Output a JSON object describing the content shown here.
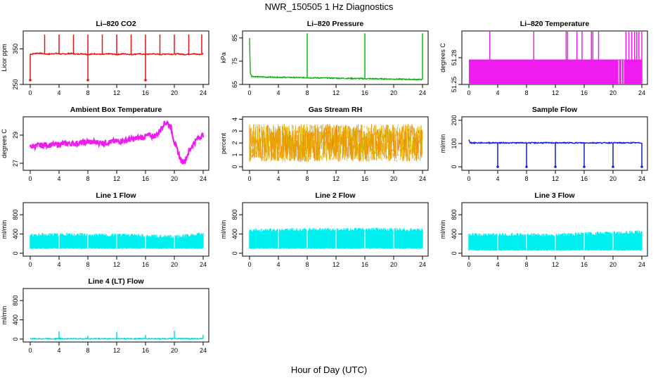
{
  "main_title": "NWR_150505  1 Hz Diagnostics",
  "x_axis_label": "Hour of Day (UTC)",
  "chart_data": [
    {
      "type": "line",
      "title": "Li–820 CO2",
      "ylabel": "Licor ppm",
      "color": "#e8120f",
      "xlim": [
        0,
        24
      ],
      "ylim": [
        250,
        400
      ],
      "yticks": [
        250,
        350
      ],
      "x": [
        0,
        0.5,
        1,
        1.5,
        2,
        2.5,
        3,
        3.5,
        4,
        4.5,
        5,
        5.5,
        6,
        6.5,
        7,
        7.5,
        8,
        8.5,
        9,
        9.5,
        10,
        10.5,
        11,
        11.5,
        12,
        12.5,
        13,
        13.5,
        14,
        14.5,
        15,
        15.5,
        16,
        16.5,
        17,
        17.5,
        18,
        18.5,
        19,
        19.5,
        20,
        20.5,
        21,
        21.5,
        22,
        22.5,
        23,
        23.5,
        24
      ],
      "y": [
        335,
        336,
        338,
        337,
        336,
        335,
        336,
        337,
        336,
        335,
        336,
        337,
        336,
        335,
        336,
        336,
        334,
        335,
        336,
        335,
        334,
        335,
        336,
        335,
        334,
        335,
        336,
        335,
        334,
        335,
        336,
        335,
        334,
        335,
        336,
        335,
        334,
        335,
        336,
        335,
        335,
        336,
        335,
        334,
        335,
        336,
        335,
        334,
        336
      ],
      "spike_hours": [
        2,
        4,
        6,
        8,
        10,
        12,
        14,
        16,
        18,
        20,
        22,
        23.8
      ],
      "spike_high": 390,
      "drop_hours": [
        0,
        8,
        16
      ],
      "drop_low": 262
    },
    {
      "type": "line",
      "title": "Li–820 Pressure",
      "ylabel": "kPa",
      "color": "#0eb30e",
      "xlim": [
        0,
        24
      ],
      "ylim": [
        65,
        88
      ],
      "yticks": [
        65,
        75,
        85
      ],
      "x": [
        0,
        0.1,
        0.3,
        1,
        2,
        4,
        6,
        8,
        10,
        12,
        14,
        16,
        18,
        20,
        22,
        23.9
      ],
      "y": [
        85,
        70,
        68.5,
        68.3,
        68.2,
        68.1,
        68,
        67.9,
        67.8,
        67.7,
        67.6,
        67.5,
        67.4,
        67.3,
        67.2,
        67.1
      ],
      "spike_hours": [
        8,
        16,
        24
      ],
      "spike_high": 87
    },
    {
      "type": "area",
      "title": "Li–820 Temperature",
      "ylabel": "degrees C",
      "color": "#ee1cee",
      "xlim": [
        0,
        24
      ],
      "ylim": [
        51.25,
        51.31
      ],
      "yticks": [
        51.25,
        51.28
      ],
      "x": [
        0,
        24
      ],
      "base": 51.25,
      "level": 51.278,
      "spike_hours": [
        2.9,
        9,
        13.5,
        13.7,
        15,
        15.7,
        17,
        17.2,
        18,
        21.8,
        22.2,
        22.6,
        23,
        23.3,
        23.6,
        24
      ],
      "spike_high": 51.31
    },
    {
      "type": "line",
      "title": "Ambient Box Temperature",
      "ylabel": "degrees C",
      "color": "#ee1cee",
      "xlim": [
        0,
        24
      ],
      "ylim": [
        26.5,
        30.3
      ],
      "yticks": [
        27,
        29
      ],
      "x": [
        0,
        1,
        2,
        3,
        4,
        5,
        6,
        7,
        8,
        9,
        10,
        11,
        12,
        13,
        14,
        15,
        16,
        16.5,
        17,
        17.5,
        18,
        18.5,
        19,
        19.5,
        20,
        20.5,
        21,
        21.5,
        22,
        22.5,
        23,
        23.5,
        24
      ],
      "y": [
        28.2,
        28.25,
        28.3,
        28.3,
        28.35,
        28.4,
        28.4,
        28.45,
        28.5,
        28.5,
        28.45,
        28.5,
        28.55,
        28.6,
        28.7,
        28.8,
        28.9,
        29.0,
        28.9,
        29.0,
        29.3,
        29.8,
        29.9,
        29.6,
        28.5,
        27.8,
        27.1,
        27.2,
        27.8,
        28.3,
        28.6,
        28.9,
        29.0
      ],
      "noise": 0.2
    },
    {
      "type": "scatter",
      "title": "Gas Stream RH",
      "ylabel": "percent",
      "color": "#ee8e00",
      "color2": "#e0b400",
      "xlim": [
        0,
        24
      ],
      "ylim": [
        -0.3,
        4.2
      ],
      "yticks": [
        0,
        1,
        2,
        3,
        4
      ],
      "x": [
        0,
        24
      ],
      "center": 2.0,
      "spread": 1.6
    },
    {
      "type": "line",
      "title": "Sample Flow",
      "ylabel": "ml/min",
      "color": "#1320d4",
      "xlim": [
        0,
        24
      ],
      "ylim": [
        -15,
        215
      ],
      "yticks": [
        0,
        100,
        200
      ],
      "x": [
        0,
        0.2,
        24
      ],
      "y": [
        118,
        103,
        103
      ],
      "drop_hours": [
        4,
        8,
        12,
        16,
        20,
        24
      ],
      "drop_low": 0
    },
    {
      "type": "area",
      "title": "Line 1 Flow",
      "ylabel": "ml/min",
      "color": "#00f0f0",
      "xlim": [
        0,
        24
      ],
      "ylim": [
        -60,
        1050
      ],
      "yticks": [
        0,
        400,
        800
      ],
      "x": [
        0,
        4,
        8,
        12,
        16,
        20,
        24
      ],
      "base": 100,
      "top": [
        420,
        430,
        420,
        410,
        400,
        380,
        440
      ]
    },
    {
      "type": "area",
      "title": "Line 2 Flow",
      "ylabel": "ml/min",
      "color": "#00f0f0",
      "xlim": [
        0,
        24
      ],
      "ylim": [
        -60,
        1050
      ],
      "yticks": [
        0,
        400,
        800
      ],
      "x": [
        0,
        4,
        8,
        12,
        16,
        20,
        24
      ],
      "base": 100,
      "top": [
        510,
        520,
        525,
        530,
        535,
        530,
        520
      ]
    },
    {
      "type": "area",
      "title": "Line 3 Flow",
      "ylabel": "ml/min",
      "color": "#00f0f0",
      "xlim": [
        0,
        24
      ],
      "ylim": [
        -60,
        1050
      ],
      "yticks": [
        0,
        400,
        800
      ],
      "x": [
        0,
        4,
        8,
        12,
        16,
        20,
        24
      ],
      "base": 60,
      "top": [
        420,
        430,
        420,
        410,
        440,
        460,
        480
      ]
    },
    {
      "type": "line",
      "title": "Line 4 (LT) Flow",
      "ylabel": "ml/min",
      "color": "#00e0e0",
      "xlim": [
        0,
        24
      ],
      "ylim": [
        -60,
        1050
      ],
      "yticks": [
        0,
        400,
        800
      ],
      "x": [
        0,
        24
      ],
      "y": [
        8,
        8
      ],
      "spike_hours": [
        4,
        8,
        12,
        16,
        20,
        24
      ],
      "spike_values": [
        160,
        70,
        150,
        90,
        170,
        90
      ]
    }
  ]
}
